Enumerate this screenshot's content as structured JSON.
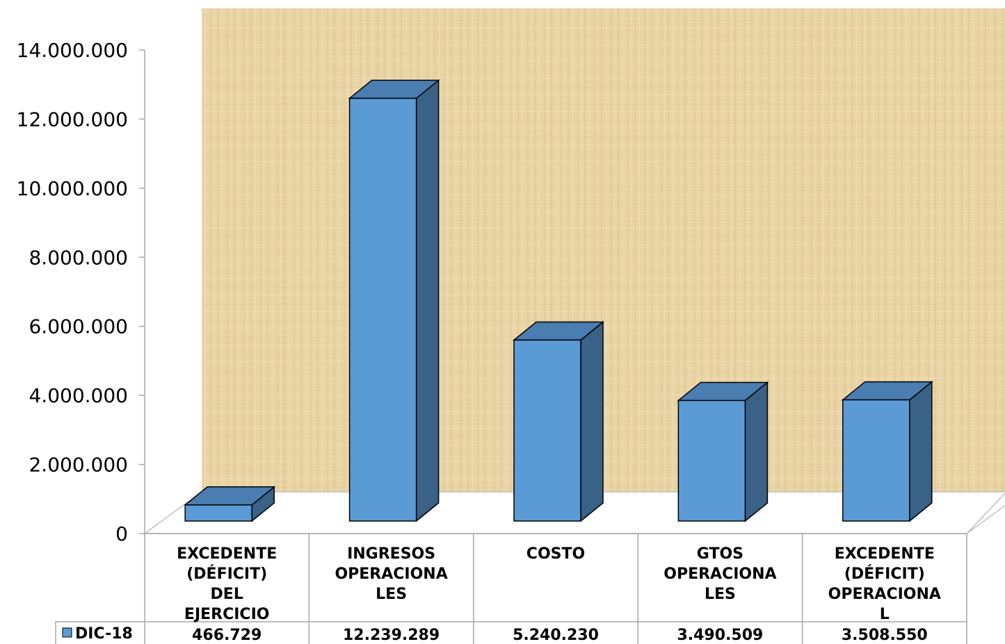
{
  "chart_data": {
    "type": "bar",
    "categories": [
      [
        "EXCEDENTE",
        "(DÉFICIT)",
        "DEL",
        "EJERCICIO"
      ],
      [
        "INGRESOS",
        "OPERACIONA",
        "LES"
      ],
      [
        "COSTO"
      ],
      [
        "GTOS",
        "OPERACIONA",
        "LES"
      ],
      [
        "EXCEDENTE",
        "(DÉFICIT)",
        "OPERACIONA",
        "L"
      ]
    ],
    "series": [
      {
        "name": "DIC-18",
        "values": [
          466729,
          12239289,
          5240230,
          3490509,
          3508550
        ],
        "value_labels": [
          "466.729",
          "12.239.289",
          "5.240.230",
          "3.490.509",
          "3.508.550"
        ]
      }
    ],
    "yticks": [
      "0",
      "2.000.000",
      "4.000.000",
      "6.000.000",
      "8.000.000",
      "10.000.000",
      "12.000.000",
      "14.000.000"
    ],
    "ylim": [
      0,
      14000000
    ],
    "legend": "data-table-left",
    "colors": {
      "bar_front": "#5b9bd5",
      "bar_side": "#3a6186",
      "bar_top": "#4a7db0",
      "wall": "#e8d3a4",
      "floor": "#ffffff"
    }
  }
}
